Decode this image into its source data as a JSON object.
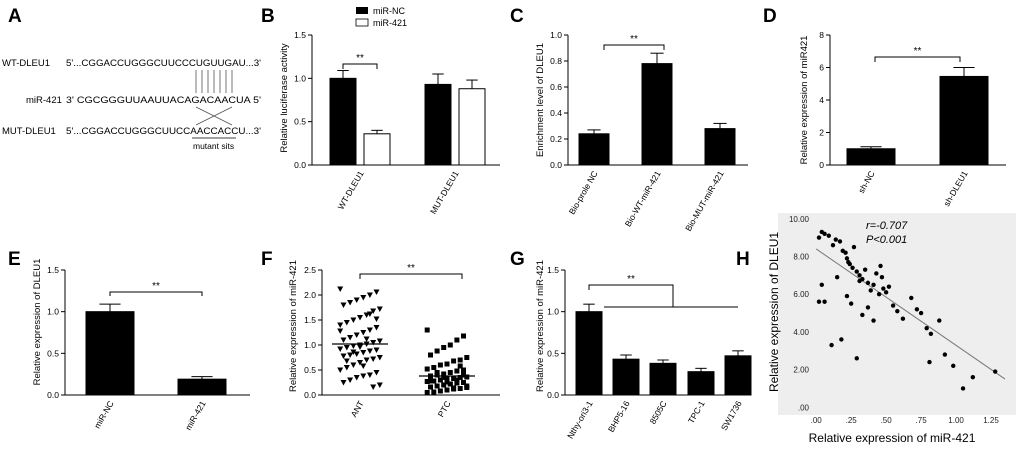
{
  "panels": {
    "A": {
      "label": "A",
      "wt_name": "WT-DLEU1",
      "wt_seq": "5'...CGGACCUGGGCUUCCCUGUUGAU...3'",
      "mir_name": "miR-421",
      "mir_seq": "3'    CGCGGGUUAAUUACAGACAACUA   5'",
      "mut_name": "MUT-DLEU1",
      "mut_seq": "5'...CGGACCUGGGCUUCCAACCACCU...3'",
      "mutant_label": "mutant sits"
    },
    "B": {
      "label": "B"
    },
    "C": {
      "label": "C"
    },
    "D": {
      "label": "D"
    },
    "E": {
      "label": "E"
    },
    "F": {
      "label": "F"
    },
    "G": {
      "label": "G"
    },
    "H": {
      "label": "H"
    }
  },
  "chart_data": [
    {
      "id": "B",
      "type": "bar",
      "ylabel": "Relative luciferase activity",
      "ylim": [
        0,
        1.5
      ],
      "yticks": [
        "0.0",
        "0.5",
        "1.0",
        "1.5"
      ],
      "categories": [
        "WT-DLEU1",
        "MUT-DLEU1"
      ],
      "legend": [
        "miR-NC",
        "miR-421"
      ],
      "series": [
        {
          "name": "miR-NC",
          "values": [
            1.0,
            0.93
          ],
          "errors": [
            0.09,
            0.12
          ],
          "fill": "#000000"
        },
        {
          "name": "miR-421",
          "values": [
            0.36,
            0.88
          ],
          "errors": [
            0.04,
            0.1
          ],
          "fill": "#ffffff"
        }
      ],
      "significance": "**"
    },
    {
      "id": "C",
      "type": "bar",
      "ylabel": "Enrichment level of DLEU1",
      "ylim": [
        0,
        1.0
      ],
      "yticks": [
        "0.0",
        "0.2",
        "0.4",
        "0.6",
        "0.8",
        "1.0"
      ],
      "categories": [
        "Bio-prole NC",
        "Bio-WT-miR-421",
        "Bio-MUT-miR-421"
      ],
      "values": [
        0.24,
        0.78,
        0.28
      ],
      "errors": [
        0.03,
        0.08,
        0.04
      ],
      "significance": "**"
    },
    {
      "id": "D",
      "type": "bar",
      "ylabel": "Relative expression of miR421",
      "ylim": [
        0,
        8
      ],
      "yticks": [
        "0",
        "2",
        "4",
        "6",
        "8"
      ],
      "categories": [
        "sh-NC",
        "sh-DLEU1"
      ],
      "values": [
        1.0,
        5.45
      ],
      "errors": [
        0.12,
        0.55
      ],
      "significance": "**"
    },
    {
      "id": "E",
      "type": "bar",
      "ylabel": "Relative expression of DLEU1",
      "ylim": [
        0,
        1.5
      ],
      "yticks": [
        "0.0",
        "0.5",
        "1.0",
        "1.5"
      ],
      "categories": [
        "miR-NC",
        "miR-421"
      ],
      "values": [
        1.0,
        0.19
      ],
      "errors": [
        0.09,
        0.03
      ],
      "significance": "**"
    },
    {
      "id": "F",
      "type": "scatter",
      "ylabel": "Relative expression of miR-421",
      "ylim": [
        0,
        2.5
      ],
      "yticks": [
        "0.0",
        "0.5",
        "1.0",
        "1.5",
        "2.0",
        "2.5"
      ],
      "categories": [
        "ANT",
        "PTC"
      ],
      "means": [
        1.02,
        0.38
      ],
      "significance": "**",
      "groups": [
        {
          "name": "ANT",
          "marker": "triangle-down",
          "values": [
            2.12,
            2.06,
            2.0,
            1.95,
            1.9,
            1.85,
            1.8,
            1.72,
            1.68,
            1.6,
            1.55,
            1.5,
            1.45,
            1.4,
            1.35,
            1.3,
            1.25,
            1.2,
            1.15,
            1.1,
            1.08,
            1.05,
            1.02,
            1.0,
            0.98,
            0.95,
            0.92,
            0.9,
            0.88,
            0.85,
            0.82,
            0.8,
            0.78,
            0.75,
            0.72,
            0.7,
            0.65,
            0.6,
            0.55,
            0.5,
            0.45,
            0.4,
            0.38,
            0.35,
            0.3,
            0.25,
            0.2,
            0.16,
            1.12,
            0.96,
            0.86,
            0.68,
            1.28,
            1.52,
            1.62,
            0.58
          ]
        },
        {
          "name": "PTC",
          "marker": "square",
          "values": [
            1.3,
            1.18,
            1.1,
            1.0,
            0.95,
            0.88,
            0.8,
            0.75,
            0.7,
            0.68,
            0.62,
            0.6,
            0.55,
            0.52,
            0.5,
            0.48,
            0.45,
            0.42,
            0.4,
            0.38,
            0.36,
            0.35,
            0.33,
            0.32,
            0.3,
            0.28,
            0.27,
            0.25,
            0.24,
            0.22,
            0.2,
            0.18,
            0.16,
            0.15,
            0.13,
            0.12,
            0.1,
            0.08,
            0.06,
            0.05,
            0.4,
            0.3,
            0.22,
            0.35,
            0.45,
            0.28,
            0.18,
            0.58,
            0.14,
            0.26
          ]
        }
      ]
    },
    {
      "id": "G",
      "type": "bar",
      "ylabel": "Relative expression of miR-421",
      "ylim": [
        0,
        1.5
      ],
      "yticks": [
        "0.0",
        "0.5",
        "1.0",
        "1.5"
      ],
      "categories": [
        "Nthy-ori3-1",
        "BHP5-16",
        "8505C",
        "TPC-1",
        "SW1736"
      ],
      "values": [
        1.0,
        0.43,
        0.38,
        0.28,
        0.47
      ],
      "errors": [
        0.09,
        0.05,
        0.04,
        0.04,
        0.06
      ],
      "significance": "**"
    },
    {
      "id": "H",
      "type": "scatter",
      "xlabel": "Relative expression of miR-421",
      "ylabel": "Relative expression of DLEU1",
      "xlim": [
        -0.03,
        1.4
      ],
      "ylim": [
        -0.3,
        10.2
      ],
      "xticks": [
        ".00",
        ".25",
        ".50",
        ".75",
        "1.00",
        "1.25"
      ],
      "yticks": [
        ".00",
        "2.00",
        "4.00",
        "6.00",
        "8.00",
        "10.00"
      ],
      "stats": {
        "r": "r=-0.707",
        "p": "P<0.001"
      },
      "fit": {
        "x": [
          0.0,
          1.35
        ],
        "y": [
          8.4,
          1.5
        ]
      },
      "points": [
        [
          0.02,
          9.0
        ],
        [
          0.04,
          9.3
        ],
        [
          0.06,
          9.2
        ],
        [
          0.09,
          9.1
        ],
        [
          0.12,
          8.6
        ],
        [
          0.14,
          8.9
        ],
        [
          0.17,
          8.8
        ],
        [
          0.19,
          8.3
        ],
        [
          0.21,
          8.2
        ],
        [
          0.22,
          7.9
        ],
        [
          0.24,
          7.6
        ],
        [
          0.26,
          7.4
        ],
        [
          0.27,
          8.5
        ],
        [
          0.29,
          7.2
        ],
        [
          0.31,
          7.0
        ],
        [
          0.33,
          6.8
        ],
        [
          0.35,
          7.3
        ],
        [
          0.37,
          6.6
        ],
        [
          0.39,
          6.2
        ],
        [
          0.41,
          6.5
        ],
        [
          0.43,
          7.1
        ],
        [
          0.45,
          6.0
        ],
        [
          0.46,
          7.5
        ],
        [
          0.48,
          6.3
        ],
        [
          0.5,
          6.1
        ],
        [
          0.52,
          6.4
        ],
        [
          0.55,
          5.4
        ],
        [
          0.58,
          5.1
        ],
        [
          0.62,
          4.7
        ],
        [
          0.68,
          5.8
        ],
        [
          0.72,
          5.2
        ],
        [
          0.75,
          5.0
        ],
        [
          0.79,
          4.2
        ],
        [
          0.82,
          3.9
        ],
        [
          0.88,
          4.6
        ],
        [
          0.92,
          2.8
        ],
        [
          0.98,
          2.2
        ],
        [
          1.05,
          1.0
        ],
        [
          1.12,
          1.6
        ],
        [
          1.28,
          1.9
        ],
        [
          0.04,
          6.5
        ],
        [
          0.06,
          5.6
        ],
        [
          0.11,
          3.3
        ],
        [
          0.18,
          3.6
        ],
        [
          0.22,
          5.9
        ],
        [
          0.25,
          5.5
        ],
        [
          0.29,
          2.6
        ],
        [
          0.33,
          4.9
        ],
        [
          0.37,
          5.3
        ],
        [
          0.41,
          4.6
        ],
        [
          0.02,
          5.6
        ],
        [
          0.15,
          6.9
        ],
        [
          0.23,
          7.7
        ],
        [
          0.31,
          6.7
        ],
        [
          0.47,
          6.9
        ],
        [
          0.81,
          2.4
        ]
      ]
    }
  ]
}
